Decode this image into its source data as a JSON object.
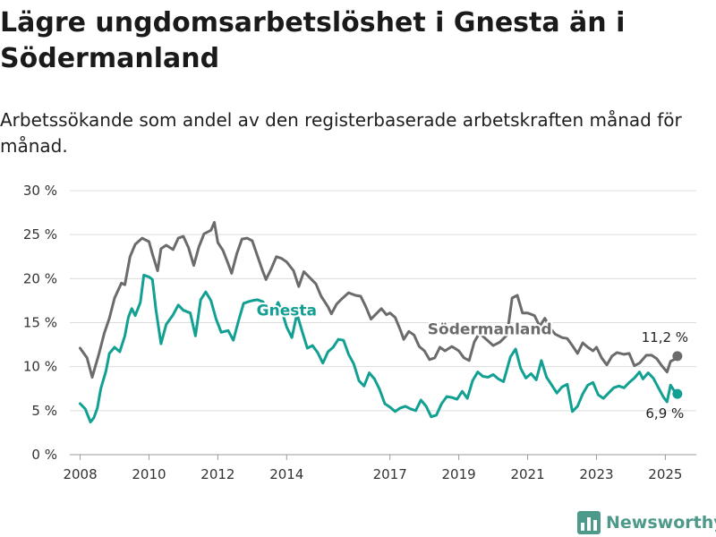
{
  "title": "Lägre ungdomsarbetslöshet i Gnesta än i Södermanland",
  "subtitle": "Arbetssökande som andel av den registerbaserade arbetskraften månad för månad.",
  "brand": {
    "name": "Newsworthy",
    "icon": "bar-chart-logo-icon",
    "color": "#4e9a8a"
  },
  "chart_data": {
    "type": "line",
    "ylim": [
      0,
      30
    ],
    "yticks": [
      0,
      5,
      10,
      15,
      20,
      25,
      30
    ],
    "ytick_labels": [
      "0 %",
      "5 %",
      "10 %",
      "15 %",
      "20 %",
      "25 %",
      "30 %"
    ],
    "xlim": [
      2007.7,
      2025.9
    ],
    "xticks": [
      2008,
      2010,
      2012,
      2014,
      2017,
      2019,
      2021,
      2023,
      2025
    ],
    "xtick_labels": [
      "2008",
      "2010",
      "2012",
      "2014",
      "2017",
      "2019",
      "2021",
      "2023",
      "2025"
    ],
    "grid": "horizontal",
    "series": [
      {
        "name": "Södermanland",
        "color": "#6b6b6e",
        "end_label": "11,2 %",
        "points": [
          [
            2008.0,
            12.1
          ],
          [
            2008.2,
            11.0
          ],
          [
            2008.35,
            8.8
          ],
          [
            2008.55,
            11.5
          ],
          [
            2008.7,
            13.8
          ],
          [
            2008.85,
            15.5
          ],
          [
            2009.0,
            17.8
          ],
          [
            2009.2,
            19.5
          ],
          [
            2009.3,
            19.3
          ],
          [
            2009.45,
            22.5
          ],
          [
            2009.6,
            23.9
          ],
          [
            2009.8,
            24.6
          ],
          [
            2010.0,
            24.2
          ],
          [
            2010.1,
            22.8
          ],
          [
            2010.25,
            20.9
          ],
          [
            2010.35,
            23.4
          ],
          [
            2010.5,
            23.8
          ],
          [
            2010.7,
            23.3
          ],
          [
            2010.85,
            24.6
          ],
          [
            2011.0,
            24.8
          ],
          [
            2011.15,
            23.5
          ],
          [
            2011.3,
            21.5
          ],
          [
            2011.45,
            23.6
          ],
          [
            2011.6,
            25.1
          ],
          [
            2011.8,
            25.5
          ],
          [
            2011.9,
            26.4
          ],
          [
            2012.0,
            24.1
          ],
          [
            2012.15,
            23.2
          ],
          [
            2012.3,
            21.7
          ],
          [
            2012.4,
            20.6
          ],
          [
            2012.55,
            22.8
          ],
          [
            2012.7,
            24.5
          ],
          [
            2012.85,
            24.6
          ],
          [
            2013.0,
            24.3
          ],
          [
            2013.15,
            22.6
          ],
          [
            2013.3,
            20.9
          ],
          [
            2013.4,
            19.9
          ],
          [
            2013.55,
            21.1
          ],
          [
            2013.7,
            22.5
          ],
          [
            2013.85,
            22.3
          ],
          [
            2014.0,
            21.9
          ],
          [
            2014.2,
            20.9
          ],
          [
            2014.35,
            19.1
          ],
          [
            2014.5,
            20.8
          ],
          [
            2014.7,
            20.0
          ],
          [
            2014.85,
            19.4
          ],
          [
            2015.0,
            18.0
          ],
          [
            2015.2,
            16.8
          ],
          [
            2015.3,
            16.0
          ],
          [
            2015.45,
            17.1
          ],
          [
            2015.6,
            17.7
          ],
          [
            2015.8,
            18.4
          ],
          [
            2016.0,
            18.1
          ],
          [
            2016.15,
            18.0
          ],
          [
            2016.3,
            16.8
          ],
          [
            2016.45,
            15.4
          ],
          [
            2016.6,
            16.0
          ],
          [
            2016.75,
            16.6
          ],
          [
            2016.9,
            15.9
          ],
          [
            2017.0,
            16.1
          ],
          [
            2017.15,
            15.6
          ],
          [
            2017.3,
            14.2
          ],
          [
            2017.4,
            13.1
          ],
          [
            2017.55,
            14.0
          ],
          [
            2017.7,
            13.6
          ],
          [
            2017.85,
            12.3
          ],
          [
            2018.0,
            11.8
          ],
          [
            2018.15,
            10.8
          ],
          [
            2018.3,
            11.0
          ],
          [
            2018.45,
            12.2
          ],
          [
            2018.6,
            11.8
          ],
          [
            2018.8,
            12.3
          ],
          [
            2019.0,
            11.8
          ],
          [
            2019.15,
            11.0
          ],
          [
            2019.3,
            10.7
          ],
          [
            2019.45,
            12.8
          ],
          [
            2019.6,
            13.8
          ],
          [
            2019.8,
            13.1
          ],
          [
            2020.0,
            12.4
          ],
          [
            2020.2,
            12.8
          ],
          [
            2020.4,
            13.6
          ],
          [
            2020.55,
            17.8
          ],
          [
            2020.7,
            18.1
          ],
          [
            2020.85,
            16.1
          ],
          [
            2021.0,
            16.1
          ],
          [
            2021.2,
            15.8
          ],
          [
            2021.35,
            14.6
          ],
          [
            2021.5,
            15.5
          ],
          [
            2021.65,
            14.4
          ],
          [
            2021.8,
            13.7
          ],
          [
            2022.0,
            13.3
          ],
          [
            2022.15,
            13.2
          ],
          [
            2022.3,
            12.4
          ],
          [
            2022.45,
            11.5
          ],
          [
            2022.6,
            12.7
          ],
          [
            2022.75,
            12.2
          ],
          [
            2022.9,
            11.8
          ],
          [
            2023.0,
            12.2
          ],
          [
            2023.15,
            11.0
          ],
          [
            2023.3,
            10.2
          ],
          [
            2023.45,
            11.2
          ],
          [
            2023.6,
            11.6
          ],
          [
            2023.8,
            11.4
          ],
          [
            2023.95,
            11.5
          ],
          [
            2024.1,
            10.1
          ],
          [
            2024.25,
            10.4
          ],
          [
            2024.45,
            11.3
          ],
          [
            2024.6,
            11.3
          ],
          [
            2024.75,
            10.9
          ],
          [
            2024.9,
            10.1
          ],
          [
            2025.05,
            9.4
          ],
          [
            2025.15,
            10.6
          ],
          [
            2025.25,
            10.8
          ],
          [
            2025.35,
            11.2
          ]
        ]
      },
      {
        "name": "Gnesta",
        "color": "#12a092",
        "end_label": "6,9 %",
        "points": [
          [
            2008.0,
            5.8
          ],
          [
            2008.15,
            5.2
          ],
          [
            2008.3,
            3.7
          ],
          [
            2008.4,
            4.2
          ],
          [
            2008.5,
            5.3
          ],
          [
            2008.6,
            7.5
          ],
          [
            2008.75,
            9.5
          ],
          [
            2008.85,
            11.5
          ],
          [
            2009.0,
            12.2
          ],
          [
            2009.15,
            11.7
          ],
          [
            2009.3,
            13.5
          ],
          [
            2009.4,
            15.6
          ],
          [
            2009.5,
            16.6
          ],
          [
            2009.6,
            15.8
          ],
          [
            2009.75,
            17.3
          ],
          [
            2009.85,
            20.4
          ],
          [
            2010.0,
            20.2
          ],
          [
            2010.1,
            19.9
          ],
          [
            2010.2,
            16.5
          ],
          [
            2010.35,
            12.6
          ],
          [
            2010.5,
            14.8
          ],
          [
            2010.7,
            15.9
          ],
          [
            2010.85,
            17.0
          ],
          [
            2011.0,
            16.4
          ],
          [
            2011.2,
            16.1
          ],
          [
            2011.35,
            13.5
          ],
          [
            2011.5,
            17.6
          ],
          [
            2011.65,
            18.5
          ],
          [
            2011.8,
            17.5
          ],
          [
            2011.95,
            15.4
          ],
          [
            2012.1,
            13.9
          ],
          [
            2012.3,
            14.1
          ],
          [
            2012.45,
            13.0
          ],
          [
            2012.6,
            15.2
          ],
          [
            2012.75,
            17.2
          ],
          [
            2012.9,
            17.4
          ],
          [
            2013.0,
            17.5
          ],
          [
            2013.15,
            17.6
          ],
          [
            2013.3,
            17.4
          ],
          [
            2013.45,
            16.6
          ],
          [
            2013.6,
            15.9
          ],
          [
            2013.75,
            17.3
          ],
          [
            2013.9,
            15.8
          ],
          [
            2014.0,
            14.5
          ],
          [
            2014.15,
            13.3
          ],
          [
            2014.3,
            16.0
          ],
          [
            2014.45,
            14.0
          ],
          [
            2014.6,
            12.1
          ],
          [
            2014.75,
            12.4
          ],
          [
            2014.9,
            11.6
          ],
          [
            2015.05,
            10.4
          ],
          [
            2015.2,
            11.7
          ],
          [
            2015.35,
            12.2
          ],
          [
            2015.5,
            13.1
          ],
          [
            2015.65,
            13.0
          ],
          [
            2015.8,
            11.4
          ],
          [
            2015.95,
            10.3
          ],
          [
            2016.1,
            8.4
          ],
          [
            2016.25,
            7.8
          ],
          [
            2016.4,
            9.3
          ],
          [
            2016.55,
            8.6
          ],
          [
            2016.7,
            7.4
          ],
          [
            2016.85,
            5.8
          ],
          [
            2017.0,
            5.4
          ],
          [
            2017.15,
            4.9
          ],
          [
            2017.3,
            5.3
          ],
          [
            2017.45,
            5.5
          ],
          [
            2017.6,
            5.2
          ],
          [
            2017.75,
            5.0
          ],
          [
            2017.9,
            6.2
          ],
          [
            2018.05,
            5.5
          ],
          [
            2018.2,
            4.3
          ],
          [
            2018.35,
            4.5
          ],
          [
            2018.5,
            5.8
          ],
          [
            2018.65,
            6.6
          ],
          [
            2018.8,
            6.5
          ],
          [
            2018.95,
            6.3
          ],
          [
            2019.1,
            7.2
          ],
          [
            2019.25,
            6.4
          ],
          [
            2019.4,
            8.4
          ],
          [
            2019.55,
            9.4
          ],
          [
            2019.7,
            8.9
          ],
          [
            2019.85,
            8.8
          ],
          [
            2020.0,
            9.1
          ],
          [
            2020.15,
            8.6
          ],
          [
            2020.3,
            8.3
          ],
          [
            2020.5,
            11.1
          ],
          [
            2020.65,
            12.0
          ],
          [
            2020.8,
            9.8
          ],
          [
            2020.95,
            8.7
          ],
          [
            2021.1,
            9.2
          ],
          [
            2021.25,
            8.5
          ],
          [
            2021.4,
            10.7
          ],
          [
            2021.55,
            8.8
          ],
          [
            2021.7,
            7.9
          ],
          [
            2021.85,
            7.0
          ],
          [
            2022.0,
            7.7
          ],
          [
            2022.15,
            8.0
          ],
          [
            2022.3,
            4.9
          ],
          [
            2022.45,
            5.5
          ],
          [
            2022.6,
            6.9
          ],
          [
            2022.75,
            7.9
          ],
          [
            2022.9,
            8.2
          ],
          [
            2023.05,
            6.8
          ],
          [
            2023.2,
            6.4
          ],
          [
            2023.35,
            7.0
          ],
          [
            2023.5,
            7.6
          ],
          [
            2023.65,
            7.8
          ],
          [
            2023.8,
            7.6
          ],
          [
            2023.95,
            8.2
          ],
          [
            2024.1,
            8.7
          ],
          [
            2024.25,
            9.4
          ],
          [
            2024.35,
            8.6
          ],
          [
            2024.5,
            9.3
          ],
          [
            2024.65,
            8.7
          ],
          [
            2024.8,
            7.6
          ],
          [
            2024.95,
            6.5
          ],
          [
            2025.05,
            6.0
          ],
          [
            2025.15,
            7.9
          ],
          [
            2025.25,
            7.3
          ],
          [
            2025.35,
            6.9
          ]
        ]
      }
    ],
    "series_labels": [
      {
        "series": "Gnesta",
        "text": "Gnesta",
        "x": 2014.0,
        "y": 15.8
      },
      {
        "series": "Södermanland",
        "text": "Södermanland",
        "x": 2019.9,
        "y": 13.7
      }
    ]
  }
}
